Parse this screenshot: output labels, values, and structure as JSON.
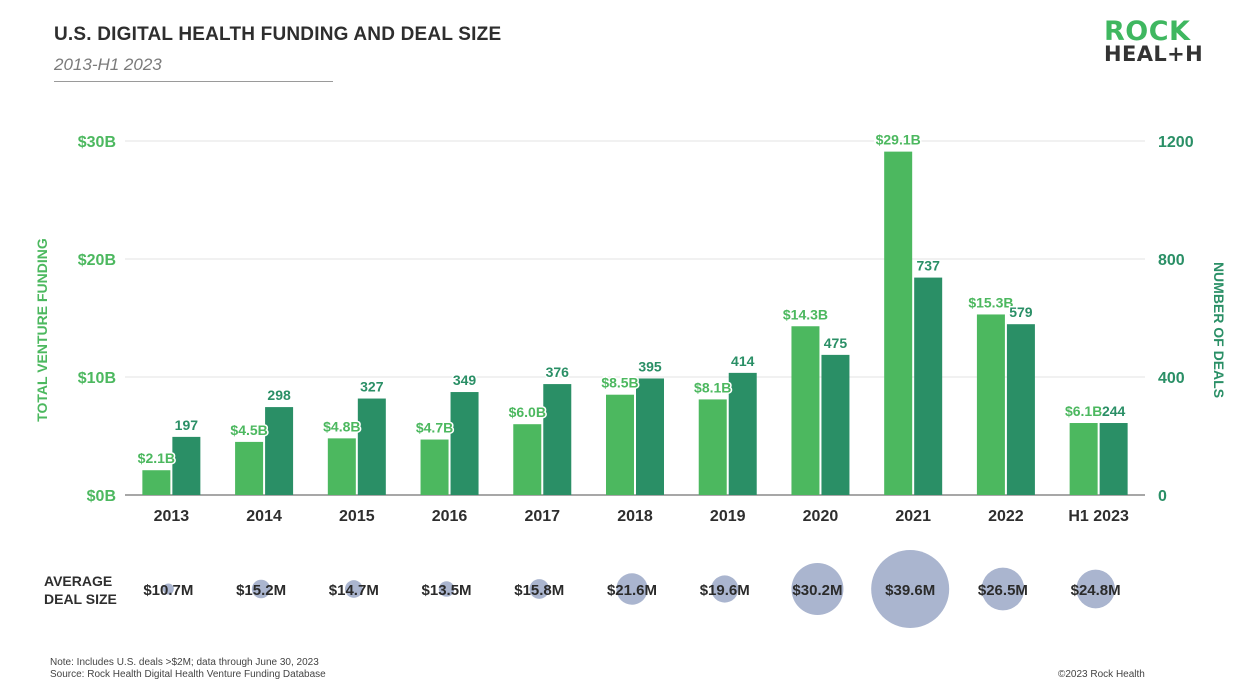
{
  "header": {
    "title": "U.S. DIGITAL HEALTH FUNDING AND DEAL SIZE",
    "subtitle": "2013-H1 2023"
  },
  "logo": {
    "line1": "ROCK",
    "line2": "HEAL+H"
  },
  "chart_data": {
    "type": "bar",
    "categories": [
      "2013",
      "2014",
      "2015",
      "2016",
      "2017",
      "2018",
      "2019",
      "2020",
      "2021",
      "2022",
      "H1 2023"
    ],
    "series": [
      {
        "name": "Total Venture Funding",
        "axis": "left",
        "color": "#4cb85f",
        "values": [
          2.1,
          4.5,
          4.8,
          4.7,
          6.0,
          8.5,
          8.1,
          14.3,
          29.1,
          15.3,
          6.1
        ],
        "labels": [
          "$2.1B",
          "$4.5B",
          "$4.8B",
          "$4.7B",
          "$6.0B",
          "$8.5B",
          "$8.1B",
          "$14.3B",
          "$29.1B",
          "$15.3B",
          "$6.1B"
        ]
      },
      {
        "name": "Number of Deals",
        "axis": "right",
        "color": "#2a8f66",
        "values": [
          197,
          298,
          327,
          349,
          376,
          395,
          414,
          475,
          737,
          579,
          244
        ],
        "labels": [
          "197",
          "298",
          "327",
          "349",
          "376",
          "395",
          "414",
          "475",
          "737",
          "579",
          "244"
        ]
      }
    ],
    "left_axis": {
      "label": "TOTAL VENTURE FUNDING",
      "ylim": [
        0,
        30
      ],
      "ticks": [
        0,
        10,
        20,
        30
      ],
      "tick_labels": [
        "$0B",
        "$10B",
        "$20B",
        "$30B"
      ],
      "color": "#4cb85f"
    },
    "right_axis": {
      "label": "NUMBER OF DEALS",
      "ylim": [
        0,
        1200
      ],
      "ticks": [
        0,
        400,
        800,
        1200
      ],
      "tick_labels": [
        "0",
        "400",
        "800",
        "1200"
      ],
      "color": "#2a8f66"
    },
    "grid": true,
    "average_deal_size": {
      "label_line1": "AVERAGE",
      "label_line2": "DEAL SIZE",
      "values": [
        10.7,
        15.2,
        14.7,
        13.5,
        15.8,
        21.6,
        19.6,
        30.2,
        39.6,
        26.5,
        24.8
      ],
      "labels": [
        "$10.7M",
        "$15.2M",
        "$14.7M",
        "$13.5M",
        "$15.8M",
        "$21.6M",
        "$19.6M",
        "$30.2M",
        "$39.6M",
        "$26.5M",
        "$24.8M"
      ],
      "bubble_color": "#aab5cf"
    }
  },
  "footer": {
    "note": "Note: Includes U.S. deals >$2M; data through June 30, 2023",
    "source": "Source: Rock Health Digital Health Venture Funding Database",
    "copyright": "©2023 Rock Health"
  }
}
